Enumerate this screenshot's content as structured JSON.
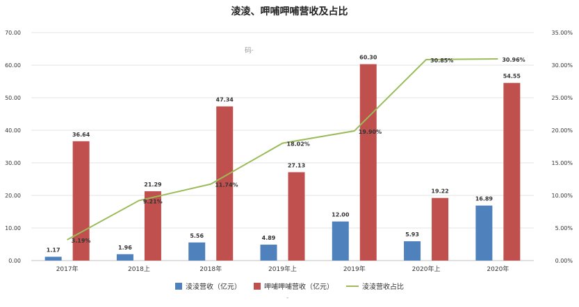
{
  "chart_data": {
    "type": "bar",
    "title": "淩淩、呷哺呷哺营收及占比",
    "categories": [
      "2017年",
      "2018上",
      "2018年",
      "2019年上",
      "2019年",
      "2020年上",
      "2020年"
    ],
    "series": [
      {
        "name": "淩淩营收（亿元）",
        "type": "bar",
        "axis": "left",
        "color": "#4f81bd",
        "values": [
          1.17,
          1.96,
          5.56,
          4.89,
          12.0,
          5.93,
          16.89
        ],
        "labels": [
          "1.17",
          "1.96",
          "5.56",
          "4.89",
          "12.00",
          "5.93",
          "16.89"
        ]
      },
      {
        "name": "呷哺呷哺营收（亿元）",
        "type": "bar",
        "axis": "left",
        "color": "#c0504d",
        "values": [
          36.64,
          21.29,
          47.34,
          27.13,
          60.3,
          19.22,
          54.55
        ],
        "labels": [
          "36.64",
          "21.29",
          "47.34",
          "27.13",
          "60.30",
          "19.22",
          "54.55"
        ]
      },
      {
        "name": "淩淩营收占比",
        "type": "line",
        "axis": "right",
        "color": "#9bbb59",
        "values": [
          3.19,
          9.21,
          11.74,
          18.02,
          19.9,
          30.85,
          30.96
        ],
        "labels": [
          "3.19%",
          "9.21%",
          "11.74%",
          "18.02%",
          "19.90%",
          "30.85%",
          "30.96%"
        ]
      }
    ],
    "y_left": {
      "lim": [
        0,
        70
      ],
      "ticks": [
        "0.00",
        "10.00",
        "20.00",
        "30.00",
        "40.00",
        "50.00",
        "60.00",
        "70.00"
      ]
    },
    "y_right": {
      "lim": [
        0,
        35
      ],
      "ticks": [
        "0.00%",
        "5.00%",
        "10.00%",
        "15.00%",
        "20.00%",
        "25.00%",
        "30.00%",
        "35.00%"
      ]
    },
    "grid": true,
    "legend_position": "bottom"
  },
  "watermark_text": "码·",
  "footer_mark": "-"
}
